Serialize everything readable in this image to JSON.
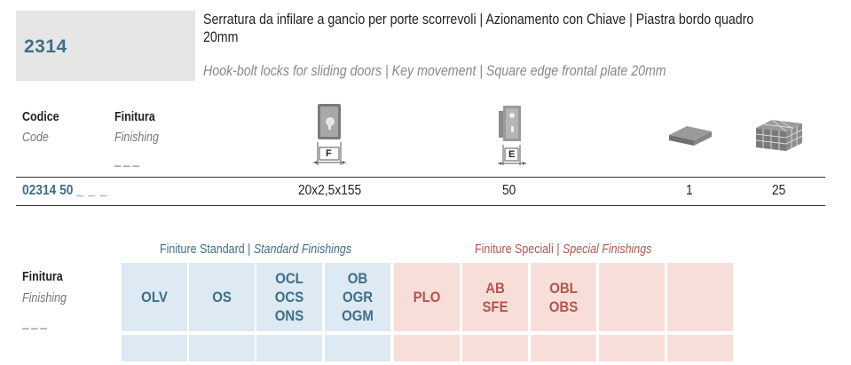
{
  "header": {
    "code": "2314",
    "title_it_line1": "Serratura da infilare a gancio per porte scorrevoli | Azionamento con Chiave | Piastra bordo quadro",
    "title_it_line2": "20mm",
    "title_en": "Hook-bolt locks for sliding doors | Key movement | Square edge frontal plate 20mm"
  },
  "table": {
    "col_code_it": "Codice",
    "col_code_en": "Code",
    "col_finish_it": "Finitura",
    "col_finish_en": "Finishing",
    "finish_placeholder": "___",
    "icon_f_label": "F",
    "icon_e_label": "E",
    "icons": [
      "frontplate-F-icon",
      "backset-E-icon",
      "single-pack-icon",
      "box-quantity-icon"
    ],
    "row": {
      "code": "02314 50",
      "finish_placeholder": "_ _ _",
      "dimension": "20x2,5x155",
      "backset": "50",
      "pack": "1",
      "box": "25"
    }
  },
  "finishings": {
    "standard_label_it": "Finiture Standard",
    "standard_label_en": "Standard Finishings",
    "special_label_it": "Finiture Speciali",
    "special_label_en": "Special Finishings",
    "separator": "|",
    "row_label_it": "Finitura",
    "row_label_en": "Finishing",
    "row_placeholder": "___",
    "standard": [
      {
        "lines": [
          "OLV"
        ]
      },
      {
        "lines": [
          "OS"
        ]
      },
      {
        "lines": [
          "OCL",
          "OCS",
          "ONS"
        ]
      },
      {
        "lines": [
          "OB",
          "OGR",
          "OGM"
        ]
      }
    ],
    "special": [
      {
        "lines": [
          "PLO"
        ]
      },
      {
        "lines": [
          "AB",
          "SFE"
        ]
      },
      {
        "lines": [
          "OBL",
          "OBS"
        ]
      },
      {
        "lines": []
      },
      {
        "lines": []
      }
    ],
    "colors": {
      "standard": "#dde9f3",
      "special": "#f8ded8",
      "standard_text": "#3f6e86",
      "special_text": "#b0564f"
    }
  }
}
